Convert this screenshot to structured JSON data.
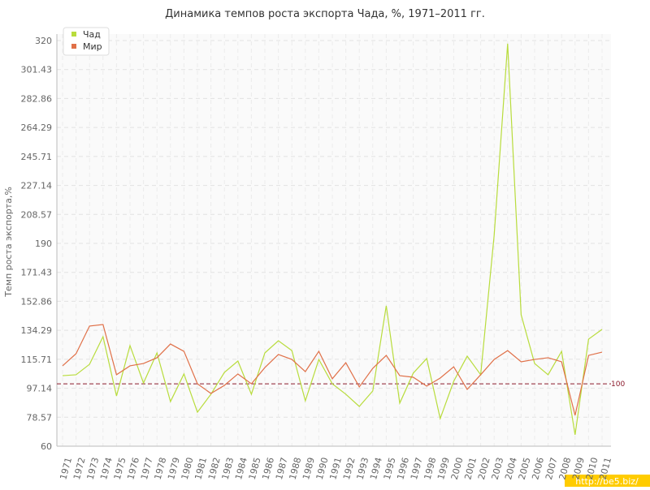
{
  "chart_data": {
    "type": "line",
    "title": "Динамика темпов роста экспорта Чада, %, 1971–2011 гг.",
    "y_label": "Темп роста экспорта,%",
    "categories": [
      "1971",
      "1972",
      "1973",
      "1974",
      "1975",
      "1976",
      "1977",
      "1978",
      "1979",
      "1980",
      "1981",
      "1982",
      "1983",
      "1984",
      "1985",
      "1986",
      "1987",
      "1988",
      "1989",
      "1990",
      "1991",
      "1992",
      "1993",
      "1994",
      "1995",
      "1996",
      "1997",
      "1998",
      "1999",
      "2000",
      "2001",
      "2002",
      "2003",
      "2004",
      "2005",
      "2006",
      "2007",
      "2008",
      "2009",
      "2010",
      "2011"
    ],
    "series": [
      {
        "name": "Чад",
        "color": "#b8dc3c",
        "values": [
          105.2,
          105.8,
          112.5,
          130.2,
          92.2,
          124.5,
          100.5,
          119.8,
          88.6,
          106.3,
          81.8,
          93.3,
          107.3,
          114.6,
          93.3,
          119.8,
          127.6,
          121.3,
          89.1,
          115.6,
          100,
          93.3,
          85.5,
          95.4,
          150,
          87.6,
          106.8,
          116.2,
          77.7,
          101.6,
          117.7,
          105.8,
          195.2,
          318,
          144.2,
          113,
          105.8,
          120.8,
          67.3,
          128.6,
          134.9
        ]
      },
      {
        "name": "Мир",
        "color": "#e07048",
        "values": [
          111.5,
          119.3,
          137,
          138,
          105.8,
          111.5,
          113,
          116.7,
          125.5,
          120.8,
          100,
          93.8,
          99,
          106.3,
          100,
          110.4,
          118.8,
          115.6,
          107.8,
          120.8,
          103.2,
          113.5,
          98,
          109.9,
          118.2,
          105.2,
          104.2,
          98.5,
          103.7,
          110.9,
          96.4,
          105.8,
          115.6,
          121.3,
          114.1,
          115.6,
          116.7,
          114.1,
          79.8,
          118.2,
          120.3
        ]
      }
    ],
    "ylim": [
      60,
      320
    ],
    "yticks": [
      60,
      78.57,
      97.14,
      115.71,
      134.29,
      152.86,
      171.43,
      190,
      208.57,
      227.14,
      245.71,
      264.29,
      282.86,
      301.43,
      320
    ],
    "reference_line": 100,
    "reference_color": "#8b1a2b",
    "grid": true,
    "legend": "top-left",
    "watermark": "http://be5.biz/"
  }
}
